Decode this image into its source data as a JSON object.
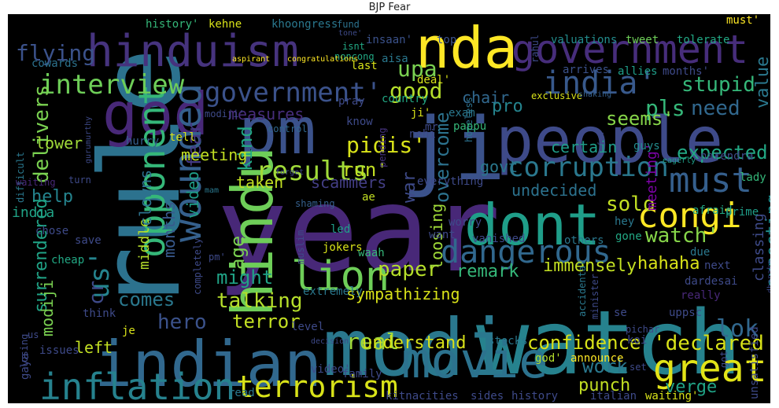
{
  "title": "BJP  Fear",
  "words": [
    {
      "text": "year",
      "color": "#482878"
    },
    {
      "text": "watch",
      "color": "#26828e"
    },
    {
      "text": "modi",
      "color": "#2a788e"
    },
    {
      "text": "rule",
      "color": "#2c728e"
    },
    {
      "text": "ji",
      "color": "#3b528b"
    },
    {
      "text": "people",
      "color": "#3e4a89"
    },
    {
      "text": "pm",
      "color": "#3b528b"
    },
    {
      "text": "god",
      "color": "#482878"
    },
    {
      "text": "indian",
      "color": "#31688e"
    },
    {
      "text": "dont",
      "color": "#1f9e89"
    },
    {
      "text": "hindu",
      "color": "#6ece58"
    },
    {
      "text": "hinduism",
      "color": "#46337e"
    },
    {
      "text": "nda",
      "color": "#fde725"
    },
    {
      "text": "government",
      "color": "#472d7b"
    },
    {
      "text": "movie",
      "color": "#2c728e"
    },
    {
      "text": "inflation",
      "color": "#26828e"
    },
    {
      "text": "great",
      "color": "#e2e418"
    },
    {
      "text": "congi",
      "color": "#fde725"
    },
    {
      "text": "wounded",
      "color": "#35608d"
    },
    {
      "text": "opponent",
      "color": "#35b779"
    },
    {
      "text": "must",
      "color": "#355f8d"
    },
    {
      "text": "dangerous",
      "color": "#31688e"
    },
    {
      "text": "lion",
      "color": "#6ece58"
    },
    {
      "text": "terrorism",
      "color": "#d8e219"
    },
    {
      "text": "government'",
      "color": "#3b528b"
    },
    {
      "text": "india'",
      "color": "#38598c"
    },
    {
      "text": "interview",
      "color": "#6ece58"
    },
    {
      "text": "corruption",
      "color": "#2a788e"
    },
    {
      "text": "results",
      "color": "#a0da39"
    },
    {
      "text": "us'",
      "color": "#25848e"
    },
    {
      "text": "flying",
      "color": "#3b528b"
    },
    {
      "text": "upa",
      "color": "#7ad151"
    },
    {
      "text": "good",
      "color": "#b5de2b"
    },
    {
      "text": "stupid",
      "color": "#35b779"
    },
    {
      "text": "pls",
      "color": "#35b779"
    },
    {
      "text": "need",
      "color": "#31688e"
    },
    {
      "text": "value",
      "color": "#2a788e"
    },
    {
      "text": "expected",
      "color": "#22a884"
    },
    {
      "text": "seems'",
      "color": "#86d549"
    },
    {
      "text": "delivers",
      "color": "#7ad151"
    },
    {
      "text": "pidis'",
      "color": "#d8e219"
    },
    {
      "text": "measures",
      "color": "#472d7b"
    },
    {
      "text": "chair",
      "color": "#31688e"
    },
    {
      "text": "overcome",
      "color": "#2c728e"
    },
    {
      "text": "war",
      "color": "#3e4a89"
    },
    {
      "text": "run'",
      "color": "#c2df23"
    },
    {
      "text": "fear",
      "color": "#443a83"
    },
    {
      "text": "kind",
      "color": "#22a884"
    },
    {
      "text": "lower",
      "color": "#a0da39"
    },
    {
      "text": "help",
      "color": "#25848e"
    },
    {
      "text": "meeting",
      "color": "#c2df23"
    },
    {
      "text": "taken",
      "color": "#c2df23"
    },
    {
      "text": "scammers",
      "color": "#433e85"
    },
    {
      "text": "solo",
      "color": "#c2df23"
    },
    {
      "text": "certain",
      "color": "#1f9e89"
    },
    {
      "text": "pro",
      "color": "#25848e"
    },
    {
      "text": "govt",
      "color": "#2a788e"
    },
    {
      "text": "undecided",
      "color": "#2c728e"
    },
    {
      "text": "watch'",
      "color": "#86d549"
    },
    {
      "text": "hahaha",
      "color": "#d8e219"
    },
    {
      "text": "expecting",
      "color": "#228c8d"
    },
    {
      "text": "classing",
      "color": "#3e4a89"
    },
    {
      "text": "meeting'",
      "color": "#7e03a8"
    },
    {
      "text": "months",
      "color": "#38598c"
    },
    {
      "text": "video",
      "color": "#1f9e89"
    },
    {
      "text": "age",
      "color": "#7ad151"
    },
    {
      "text": "middle",
      "color": "#b5de2b"
    },
    {
      "text": "clowns",
      "color": "#2c728e"
    },
    {
      "text": "india",
      "color": "#20a386"
    },
    {
      "text": "might",
      "color": "#20a386"
    },
    {
      "text": "paper",
      "color": "#b5de2b"
    },
    {
      "text": "remark",
      "color": "#35b779"
    },
    {
      "text": "immensely",
      "color": "#c2df23"
    },
    {
      "text": "loosing",
      "color": "#a0da39"
    },
    {
      "text": "comes",
      "color": "#2a788e"
    },
    {
      "text": "talking",
      "color": "#b5de2b"
    },
    {
      "text": "terror",
      "color": "#c2df23"
    },
    {
      "text": "hero",
      "color": "#3b528b"
    },
    {
      "text": "real",
      "color": "#a0da39"
    },
    {
      "text": "understand",
      "color": "#d8e219"
    },
    {
      "text": "confidence",
      "color": "#d8e219"
    },
    {
      "text": "'declared",
      "color": "#d8e219"
    },
    {
      "text": "work",
      "color": "#2a788e"
    },
    {
      "text": "punch",
      "color": "#c2df23"
    },
    {
      "text": "lok",
      "color": "#31688e"
    },
    {
      "text": "verge",
      "color": "#20a386"
    },
    {
      "text": "surrendered",
      "color": "#20a386"
    },
    {
      "text": "modiji",
      "color": "#7ad151"
    },
    {
      "text": "left",
      "color": "#c2df23"
    },
    {
      "text": "cr",
      "color": "#3e4a89"
    },
    {
      "text": "sympathizing",
      "color": "#d8e219"
    },
    {
      "text": "extremely",
      "color": "#2a788e"
    },
    {
      "text": "history'",
      "color": "#35b779"
    },
    {
      "text": "kehne",
      "color": "#d8e219"
    },
    {
      "text": "khoongress",
      "color": "#2a788e"
    },
    {
      "text": "fund",
      "color": "#2c728e"
    },
    {
      "text": "isnt",
      "color": "#22a884"
    },
    {
      "text": "noncong",
      "color": "#22a884"
    },
    {
      "text": "insaan'",
      "color": "#3b528b"
    },
    {
      "text": "top",
      "color": "#3b528b"
    },
    {
      "text": "valuations",
      "color": "#228c8d"
    },
    {
      "text": "tweet",
      "color": "#6ece58"
    },
    {
      "text": "tolerate",
      "color": "#22a884"
    },
    {
      "text": "must'",
      "color": "#fde725"
    },
    {
      "text": "cowards",
      "color": "#2c728e"
    },
    {
      "text": "aspirant",
      "color": "#fde725"
    },
    {
      "text": "congratulations",
      "color": "#fde725"
    },
    {
      "text": "last",
      "color": "#d8e219"
    },
    {
      "text": "aisa",
      "color": "#2a788e"
    },
    {
      "text": "deal'",
      "color": "#d8e219"
    },
    {
      "text": "arrives",
      "color": "#3b528b"
    },
    {
      "text": "allies",
      "color": "#1f9e89"
    },
    {
      "text": "months'",
      "color": "#3e4a89"
    },
    {
      "text": "exclusive",
      "color": "#d8e219"
    },
    {
      "text": "shaking",
      "color": "#35608d"
    },
    {
      "text": "pray",
      "color": "#3e4a89"
    },
    {
      "text": "country",
      "color": "#22a884"
    },
    {
      "text": "mr",
      "color": "#3e4a89"
    },
    {
      "text": "hopeless",
      "color": "#2c728e"
    },
    {
      "text": "exam",
      "color": "#2a788e"
    },
    {
      "text": "pappu",
      "color": "#35b779"
    },
    {
      "text": "gurumurthy",
      "color": "#3e4a89"
    },
    {
      "text": "tell",
      "color": "#d8e219"
    },
    {
      "text": "hurry",
      "color": "#35608d"
    },
    {
      "text": "modiji'",
      "color": "#3e4a89"
    },
    {
      "text": "know",
      "color": "#3e4a89"
    },
    {
      "text": "nehi",
      "color": "#3e4a89"
    },
    {
      "text": "pending",
      "color": "#46337e"
    },
    {
      "text": "guys",
      "color": "#228c8d"
    },
    {
      "text": "narendra",
      "color": "#3e4a89"
    },
    {
      "text": "eagerly",
      "color": "#1f9e89"
    },
    {
      "text": "difficult",
      "color": "#2a788e"
    },
    {
      "text": "control",
      "color": "#31688e"
    },
    {
      "text": "mam",
      "color": "#2a788e"
    },
    {
      "text": "forget",
      "color": "#3e4a89"
    },
    {
      "text": "lady",
      "color": "#35b779"
    },
    {
      "text": "waiting",
      "color": "#482878"
    },
    {
      "text": "turn",
      "color": "#3e4a89"
    },
    {
      "text": "shaming",
      "color": "#35608d"
    },
    {
      "text": "everything",
      "color": "#3e4a89"
    },
    {
      "text": "afraid",
      "color": "#22a884"
    },
    {
      "text": "prime",
      "color": "#1f9e89"
    },
    {
      "text": "hey",
      "color": "#2a788e"
    },
    {
      "text": "gone",
      "color": "#22a884"
    },
    {
      "text": "ae",
      "color": "#c2df23"
    },
    {
      "text": "worry",
      "color": "#3e4a89"
    },
    {
      "text": "want",
      "color": "#3e4a89"
    },
    {
      "text": "others",
      "color": "#2a788e"
    },
    {
      "text": "vanished",
      "color": "#3e4a89"
    },
    {
      "text": "due",
      "color": "#2a788e"
    },
    {
      "text": "next",
      "color": "#3e4a89"
    },
    {
      "text": "chose",
      "color": "#3e4a89"
    },
    {
      "text": "muslim",
      "color": "#3e4a89"
    },
    {
      "text": "led",
      "color": "#1f9e89"
    },
    {
      "text": "save",
      "color": "#3e4a89"
    },
    {
      "text": "completely",
      "color": "#3e4a89"
    },
    {
      "text": "cheap",
      "color": "#22a884"
    },
    {
      "text": "pm'",
      "color": "#3e4a89"
    },
    {
      "text": "jokers",
      "color": "#d8e219"
    },
    {
      "text": "waah",
      "color": "#35b779"
    },
    {
      "text": "dardesai",
      "color": "#3e4a89"
    },
    {
      "text": "dhanaka",
      "color": "#3e4a89"
    },
    {
      "text": "really",
      "color": "#482878"
    },
    {
      "text": "uppsc",
      "color": "#3e4a89"
    },
    {
      "text": "think",
      "color": "#3e4a89"
    },
    {
      "text": "je",
      "color": "#d8e219"
    },
    {
      "text": "level",
      "color": "#3e4a89"
    },
    {
      "text": "issues",
      "color": "#3e4a89"
    },
    {
      "text": "se",
      "color": "#3e4a89"
    },
    {
      "text": "accidental",
      "color": "#2a788e"
    },
    {
      "text": "minister",
      "color": "#3e4a89"
    },
    {
      "text": "pichar",
      "color": "#3e4a89"
    },
    {
      "text": "koi",
      "color": "#3e4a89"
    },
    {
      "text": "losing",
      "color": "#3e4a89"
    },
    {
      "text": "decision",
      "color": "#3e4a89"
    },
    {
      "text": "stocks",
      "color": "#2a788e"
    },
    {
      "text": "god'",
      "color": "#b5de2b"
    },
    {
      "text": "announce",
      "color": "#fde725"
    },
    {
      "text": "set",
      "color": "#3e4a89"
    },
    {
      "text": "got",
      "color": "#3e4a89"
    },
    {
      "text": "unsatisfied",
      "color": "#3e4a89"
    },
    {
      "text": "gaya",
      "color": "#3e4a89"
    },
    {
      "text": "video'",
      "color": "#3e4a89"
    },
    {
      "text": "family",
      "color": "#3e4a89"
    },
    {
      "text": "read",
      "color": "#2a788e"
    },
    {
      "text": "kitnacities",
      "color": "#3e4a89"
    },
    {
      "text": "sides",
      "color": "#3e4a89"
    },
    {
      "text": "history",
      "color": "#3e4a89"
    },
    {
      "text": "italian",
      "color": "#3e4a89"
    },
    {
      "text": "waiting'",
      "color": "#d8e219"
    },
    {
      "text": "rahul",
      "color": "#3e4a89"
    },
    {
      "text": "tone'",
      "color": "#3e4a89"
    },
    {
      "text": "fun",
      "color": "#3e4a89"
    },
    {
      "text": "us",
      "color": "#3e4a89"
    },
    {
      "text": "ji'",
      "color": "#d8e219"
    }
  ]
}
